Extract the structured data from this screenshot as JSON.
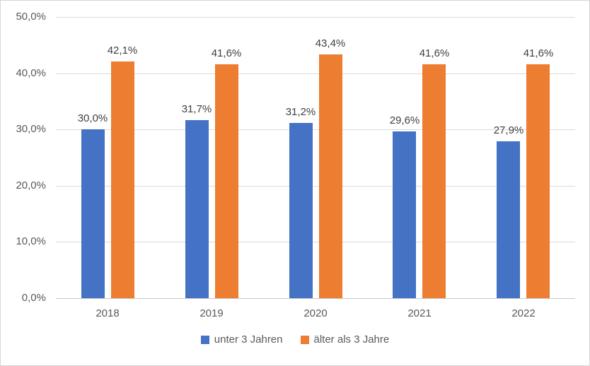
{
  "chart_data": {
    "type": "bar",
    "title": "",
    "xlabel": "",
    "ylabel": "",
    "categories": [
      "2018",
      "2019",
      "2020",
      "2021",
      "2022"
    ],
    "series": [
      {
        "name": "unter 3 Jahren",
        "color": "#4472C4",
        "values": [
          30.0,
          31.7,
          31.2,
          29.6,
          27.9
        ],
        "data_labels": [
          "30,0%",
          "31,7%",
          "31,2%",
          "29,6%",
          "27,9%"
        ]
      },
      {
        "name": "älter als 3 Jahre",
        "color": "#ED7D31",
        "values": [
          42.1,
          41.6,
          43.4,
          41.6,
          41.6
        ],
        "data_labels": [
          "42,1%",
          "41,6%",
          "43,4%",
          "41,6%",
          "41,6%"
        ]
      }
    ],
    "ylim": [
      0,
      50
    ],
    "y_ticks": [
      {
        "value": 0,
        "label": "0,0%"
      },
      {
        "value": 10,
        "label": "10,0%"
      },
      {
        "value": 20,
        "label": "20,0%"
      },
      {
        "value": 30,
        "label": "30,0%"
      },
      {
        "value": 40,
        "label": "40,0%"
      },
      {
        "value": 50,
        "label": "50,0%"
      }
    ],
    "grid": true,
    "legend_position": "bottom"
  },
  "colors": {
    "gridline": "#d9d9d9",
    "axis_line": "#c8c8c8",
    "tick_label_text": "#595959",
    "data_label_text": "#404040",
    "frame_border": "#d6d6d6",
    "background": "#ffffff"
  }
}
